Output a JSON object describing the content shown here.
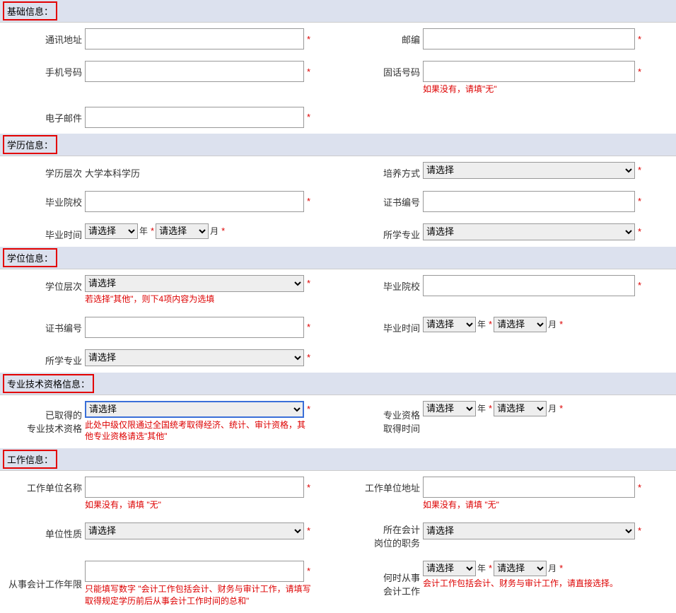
{
  "sections": {
    "basic": {
      "title": "基础信息："
    },
    "education": {
      "title": "学历信息："
    },
    "degree": {
      "title": "学位信息："
    },
    "professional": {
      "title": "专业技术资格信息："
    },
    "work": {
      "title": "工作信息："
    }
  },
  "labels": {
    "address": "通讯地址",
    "postcode": "邮编",
    "mobile": "手机号码",
    "phone": "固话号码",
    "email": "电子邮件",
    "edu_level": "学历层次",
    "training_mode": "培养方式",
    "school": "毕业院校",
    "cert_no": "证书编号",
    "grad_time": "毕业时间",
    "major": "所学专业",
    "degree_level": "学位层次",
    "degree_school": "毕业院校",
    "degree_cert": "证书编号",
    "degree_time": "毕业时间",
    "degree_major": "所学专业",
    "acquired_qual": "已取得的\n专业技术资格",
    "qual_time": "专业资格\n取得时间",
    "work_unit": "工作单位名称",
    "work_addr": "工作单位地址",
    "unit_type": "单位性质",
    "position": "所在会计\n岗位的职务",
    "work_years": "从事会计工作年限",
    "work_start": "何时从事\n会计工作"
  },
  "values": {
    "edu_level": "大学本科学历"
  },
  "selects": {
    "please_select": "请选择",
    "year_suffix": "年",
    "month_suffix": "月"
  },
  "hints": {
    "phone": "如果没有，请填\"无\"",
    "degree_level": "若选择\"其他\"，则下4项内容为选填",
    "acquired_qual": "此处中级仅限通过全国统考取得经济、统计、审计资格，其他专业资格请选\"其他\"",
    "work_unit": "如果没有，请填 \"无\"",
    "work_addr": "如果没有，请填 \"无\"",
    "work_years": "只能填写数字 \"会计工作包括会计、财务与审计工作，请填写取得规定学历前后从事会计工作时间的总和\"",
    "work_start": "会计工作包括会计、财务与审计工作，请直接选择。"
  },
  "star": "*"
}
